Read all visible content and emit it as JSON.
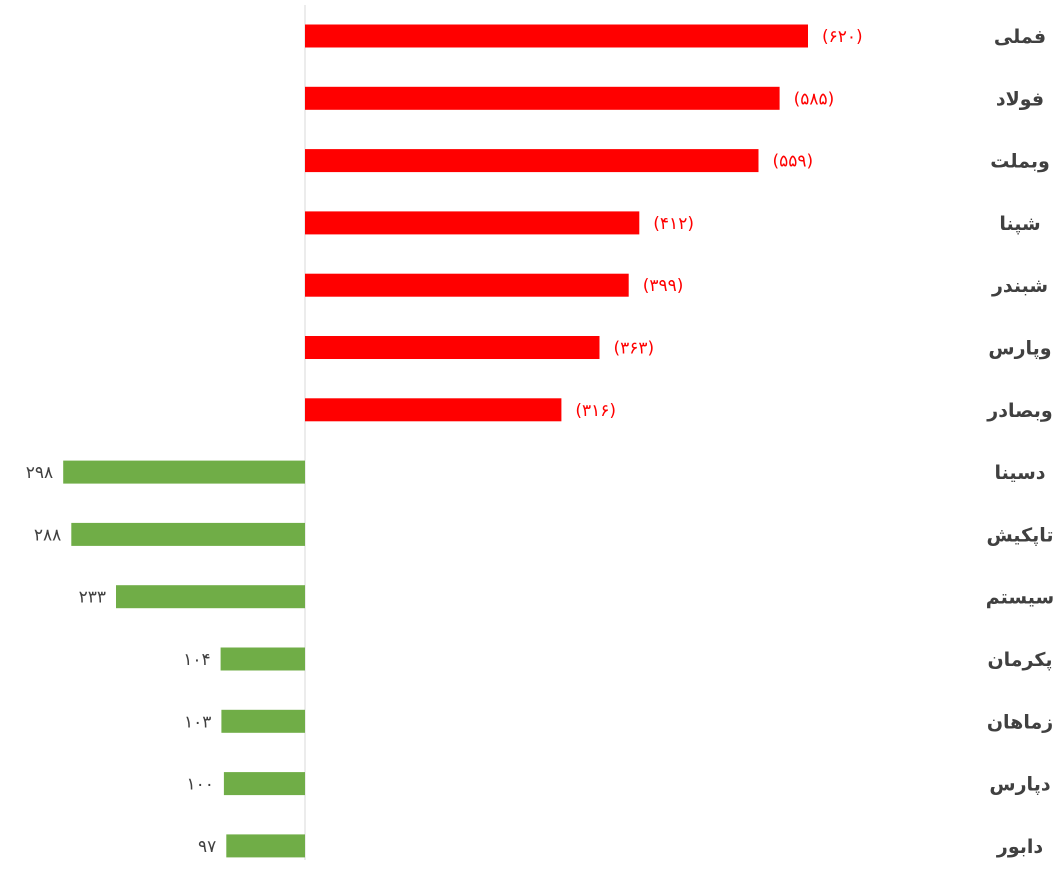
{
  "chart_data": {
    "type": "bar",
    "orientation": "horizontal",
    "categories": [
      "فملی",
      "فولاد",
      "وبملت",
      "شپنا",
      "شبندر",
      "وپارس",
      "وبصادر",
      "دسینا",
      "تاپکیش",
      "سیستم",
      "پکرمان",
      "زماهان",
      "دپارس",
      "دابور"
    ],
    "values": [
      -620,
      -585,
      -559,
      -412,
      -399,
      -363,
      -316,
      298,
      288,
      233,
      104,
      103,
      100,
      97
    ],
    "data_labels": [
      "(۶۲۰)",
      "(۵۸۵)",
      "(۵۵۹)",
      "(۴۱۲)",
      "(۳۹۹)",
      "(۳۶۳)",
      "(۳۱۶)",
      "۲۹۸",
      "۲۸۸",
      "۲۳۳",
      "۱۰۴",
      "۱۰۳",
      "۱۰۰",
      "۹۷"
    ],
    "xlim": [
      -298,
      620
    ],
    "grid": false,
    "legend": "none",
    "colors": {
      "negative": "#ff0000",
      "positive": "#70ad47",
      "negative_label": "#ff0000",
      "positive_label": "#404040",
      "category_label": "#404040",
      "axis": "#d9d9d9"
    }
  }
}
